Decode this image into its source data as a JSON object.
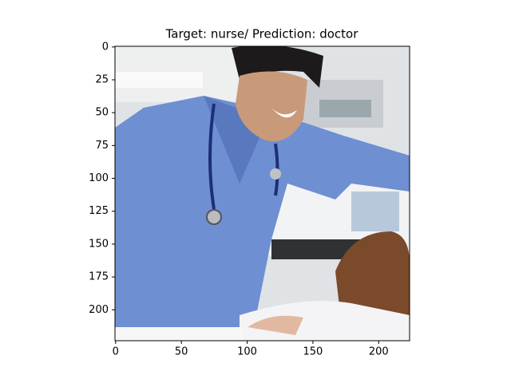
{
  "chart_data": {
    "type": "image",
    "title": "Target: nurse/ Prediction: doctor",
    "xlim": [
      -0.5,
      223.5
    ],
    "ylim": [
      223.5,
      -0.5
    ],
    "xticks": [
      0,
      50,
      100,
      150,
      200
    ],
    "yticks": [
      0,
      25,
      50,
      75,
      100,
      125,
      150,
      175,
      200
    ]
  }
}
